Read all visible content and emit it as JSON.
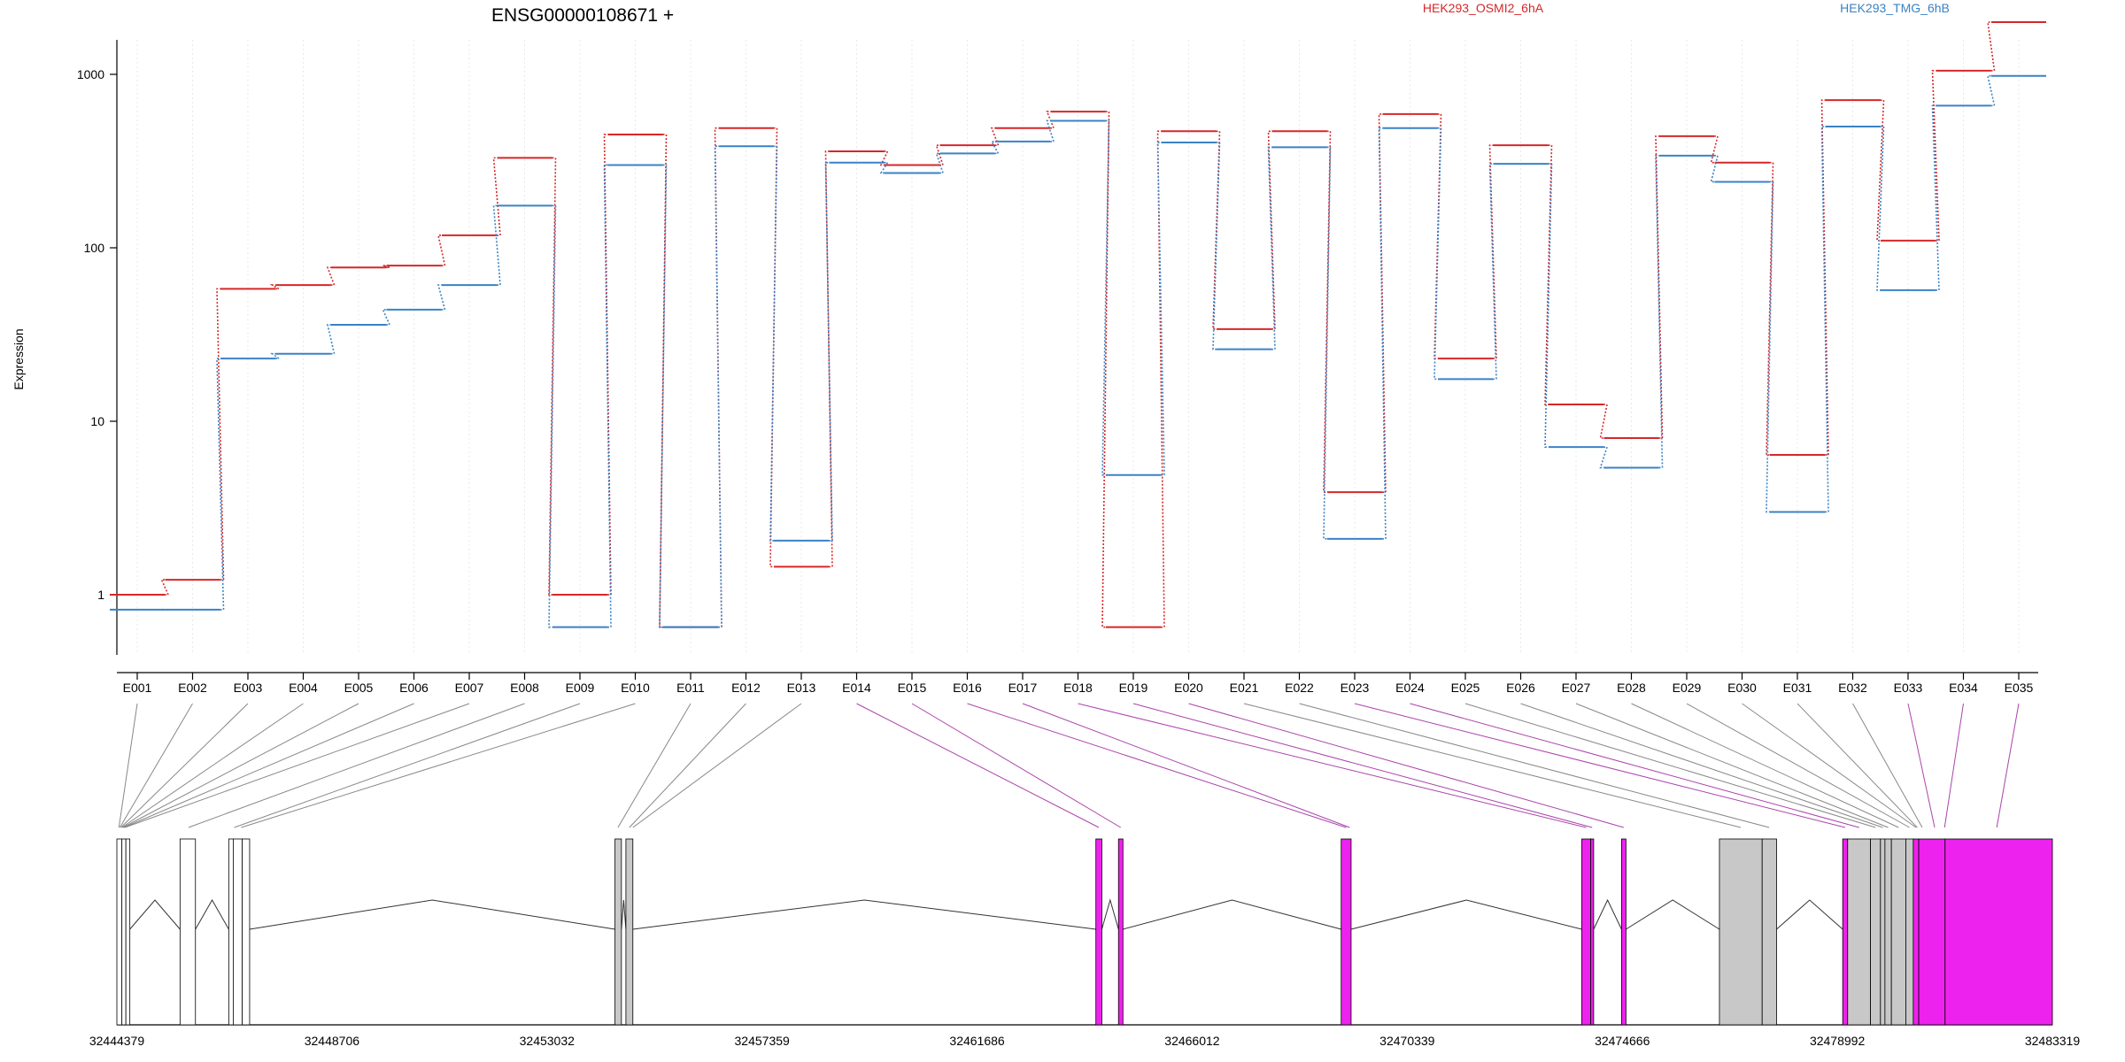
{
  "chart_data": {
    "type": "line",
    "title": "ENSG00000108671 +",
    "ylabel": "Expression",
    "xlabel": "",
    "y_scale": "log",
    "ylim": [
      0.5,
      2800
    ],
    "y_ticks": [
      1,
      10,
      100,
      1000
    ],
    "y_tick_labels": [
      "1",
      "10",
      "100",
      "1000"
    ],
    "grid": "vertical dotted lines at each exon",
    "legend_position": "top",
    "categories": [
      "E001",
      "E002",
      "E003",
      "E004",
      "E005",
      "E006",
      "E007",
      "E008",
      "E009",
      "E010",
      "E011",
      "E012",
      "E013",
      "E014",
      "E015",
      "E016",
      "E017",
      "E018",
      "E019",
      "E020",
      "E021",
      "E022",
      "E023",
      "E024",
      "E025",
      "E026",
      "E027",
      "E028",
      "E029",
      "E030",
      "E031",
      "E032",
      "E033",
      "E034",
      "E035"
    ],
    "series": [
      {
        "name": "HEK293_OSMI2_6hA",
        "color": "#d62728",
        "values": [
          1.0,
          1.22,
          58,
          61,
          77,
          79,
          118,
          330,
          1.0,
          450,
          0.65,
          490,
          1.45,
          360,
          300,
          390,
          490,
          610,
          0.65,
          470,
          34,
          470,
          3.9,
          590,
          23,
          390,
          12.5,
          8.0,
          440,
          310,
          6.4,
          710,
          110,
          1050,
          2000
        ]
      },
      {
        "name": "HEK293_TMG_6hB",
        "color": "#3a82c4",
        "values": [
          0.82,
          0.82,
          23,
          24.5,
          36,
          44,
          61,
          175,
          0.65,
          300,
          0.65,
          385,
          2.05,
          310,
          270,
          350,
          410,
          540,
          4.9,
          405,
          26,
          380,
          2.1,
          490,
          17.5,
          305,
          7.1,
          5.4,
          340,
          240,
          3.0,
          500,
          57,
          660,
          980
        ]
      }
    ],
    "gene_model": {
      "coordinate_labels": [
        "32444379",
        "32448706",
        "32453032",
        "32457359",
        "32461686",
        "32466012",
        "32470339",
        "32474666",
        "32478992",
        "32483319"
      ],
      "genomic_start": 32444379,
      "genomic_end": 32483319,
      "exon_segments": [
        {
          "exon": "E001",
          "start": 32444379,
          "end": 32444480,
          "fill": "#ffffff"
        },
        {
          "exon": "E002",
          "start": 32444480,
          "end": 32444560,
          "fill": "#ffffff"
        },
        {
          "exon": "E003",
          "start": 32444560,
          "end": 32444640,
          "fill": "#ffffff"
        },
        {
          "exon": "E004",
          "start": 32445650,
          "end": 32445960,
          "fill": "#ffffff"
        },
        {
          "exon": "E005",
          "start": 32446630,
          "end": 32446720,
          "fill": "#ffffff"
        },
        {
          "exon": "E006",
          "start": 32446720,
          "end": 32446900,
          "fill": "#ffffff"
        },
        {
          "exon": "E007",
          "start": 32446900,
          "end": 32447050,
          "fill": "#ffffff"
        },
        {
          "exon": "E008",
          "start": 32454400,
          "end": 32454530,
          "fill": "#c8c8c8"
        },
        {
          "exon": "E009",
          "start": 32454620,
          "end": 32454760,
          "fill": "#c8c8c8"
        },
        {
          "exon": "E010",
          "start": 32464075,
          "end": 32464195,
          "fill": "#ee22ee"
        },
        {
          "exon": "E011",
          "start": 32464530,
          "end": 32464620,
          "fill": "#ee22ee"
        },
        {
          "exon": "E012",
          "start": 32469010,
          "end": 32469210,
          "fill": "#ee22ee"
        },
        {
          "exon": "E013",
          "start": 32473850,
          "end": 32474030,
          "fill": "#ee22ee"
        },
        {
          "exon": "E014",
          "start": 32474030,
          "end": 32474090,
          "fill": "#ee22ee"
        },
        {
          "exon": "E015",
          "start": 32474650,
          "end": 32474740,
          "fill": "#ee22ee"
        },
        {
          "exon": "E016",
          "start": 32476620,
          "end": 32477480,
          "fill": "#c8c8c8"
        },
        {
          "exon": "E017",
          "start": 32477480,
          "end": 32477770,
          "fill": "#c8c8c8"
        },
        {
          "exon": "E018",
          "start": 32479100,
          "end": 32479200,
          "fill": "#ee22ee"
        },
        {
          "exon": "E019",
          "start": 32479200,
          "end": 32479660,
          "fill": "#c8c8c8"
        },
        {
          "exon": "E020",
          "start": 32479660,
          "end": 32479860,
          "fill": "#c8c8c8"
        },
        {
          "exon": "E021",
          "start": 32479860,
          "end": 32479950,
          "fill": "#c8c8c8"
        },
        {
          "exon": "E022",
          "start": 32479950,
          "end": 32480080,
          "fill": "#c8c8c8"
        },
        {
          "exon": "E023",
          "start": 32480080,
          "end": 32480370,
          "fill": "#c8c8c8"
        },
        {
          "exon": "E024",
          "start": 32480370,
          "end": 32480520,
          "fill": "#c8c8c8"
        },
        {
          "exon": "E025",
          "start": 32480520,
          "end": 32480630,
          "fill": "#ee22ee"
        },
        {
          "exon": "E026",
          "start": 32480630,
          "end": 32481160,
          "fill": "#ee22ee"
        },
        {
          "exon": "E027",
          "start": 32481160,
          "end": 32483319,
          "fill": "#ee22ee"
        }
      ],
      "introns": [
        {
          "start": 32444640,
          "end": 32445650
        },
        {
          "start": 32445960,
          "end": 32446630
        },
        {
          "start": 32447050,
          "end": 32454400
        },
        {
          "start": 32454530,
          "end": 32454620
        },
        {
          "start": 32454760,
          "end": 32464075
        },
        {
          "start": 32464195,
          "end": 32464530
        },
        {
          "start": 32464620,
          "end": 32469010
        },
        {
          "start": 32469210,
          "end": 32473850
        },
        {
          "start": 32474090,
          "end": 32474650
        },
        {
          "start": 32474740,
          "end": 32476620
        },
        {
          "start": 32477770,
          "end": 32479100
        }
      ],
      "connector_targets": [
        {
          "exon": "E001",
          "pos": 32444420,
          "color": "#888888"
        },
        {
          "exon": "E002",
          "pos": 32444440,
          "color": "#888888"
        },
        {
          "exon": "E003",
          "pos": 32444460,
          "color": "#888888"
        },
        {
          "exon": "E004",
          "pos": 32444480,
          "color": "#888888"
        },
        {
          "exon": "E005",
          "pos": 32444500,
          "color": "#888888"
        },
        {
          "exon": "E006",
          "pos": 32444520,
          "color": "#888888"
        },
        {
          "exon": "E007",
          "pos": 32444540,
          "color": "#888888"
        },
        {
          "exon": "E008",
          "pos": 32445820,
          "color": "#888888"
        },
        {
          "exon": "E009",
          "pos": 32446740,
          "color": "#888888"
        },
        {
          "exon": "E010",
          "pos": 32446880,
          "color": "#888888"
        },
        {
          "exon": "E011",
          "pos": 32454460,
          "color": "#888888"
        },
        {
          "exon": "E012",
          "pos": 32454690,
          "color": "#888888"
        },
        {
          "exon": "E013",
          "pos": 32454760,
          "color": "#888888"
        },
        {
          "exon": "E014",
          "pos": 32464135,
          "color": "#aa44aa"
        },
        {
          "exon": "E015",
          "pos": 32464575,
          "color": "#aa44aa"
        },
        {
          "exon": "E016",
          "pos": 32469110,
          "color": "#aa44aa"
        },
        {
          "exon": "E017",
          "pos": 32469180,
          "color": "#aa44aa"
        },
        {
          "exon": "E018",
          "pos": 32473940,
          "color": "#aa44aa"
        },
        {
          "exon": "E019",
          "pos": 32474060,
          "color": "#aa44aa"
        },
        {
          "exon": "E020",
          "pos": 32474695,
          "color": "#aa44aa"
        },
        {
          "exon": "E021",
          "pos": 32477050,
          "color": "#888888"
        },
        {
          "exon": "E022",
          "pos": 32477620,
          "color": "#888888"
        },
        {
          "exon": "E023",
          "pos": 32479150,
          "color": "#aa44aa"
        },
        {
          "exon": "E024",
          "pos": 32479430,
          "color": "#aa44aa"
        },
        {
          "exon": "E025",
          "pos": 32479760,
          "color": "#888888"
        },
        {
          "exon": "E026",
          "pos": 32479905,
          "color": "#888888"
        },
        {
          "exon": "E027",
          "pos": 32480015,
          "color": "#888888"
        },
        {
          "exon": "E028",
          "pos": 32480225,
          "color": "#888888"
        },
        {
          "exon": "E029",
          "pos": 32480445,
          "color": "#888888"
        },
        {
          "exon": "E030",
          "pos": 32480575,
          "color": "#888888"
        },
        {
          "exon": "E031",
          "pos": 32480600,
          "color": "#888888"
        },
        {
          "exon": "E032",
          "pos": 32480700,
          "color": "#888888"
        },
        {
          "exon": "E033",
          "pos": 32480950,
          "color": "#aa44aa"
        },
        {
          "exon": "E034",
          "pos": 32481150,
          "color": "#aa44aa"
        },
        {
          "exon": "E035",
          "pos": 32482200,
          "color": "#aa44aa"
        }
      ]
    }
  }
}
